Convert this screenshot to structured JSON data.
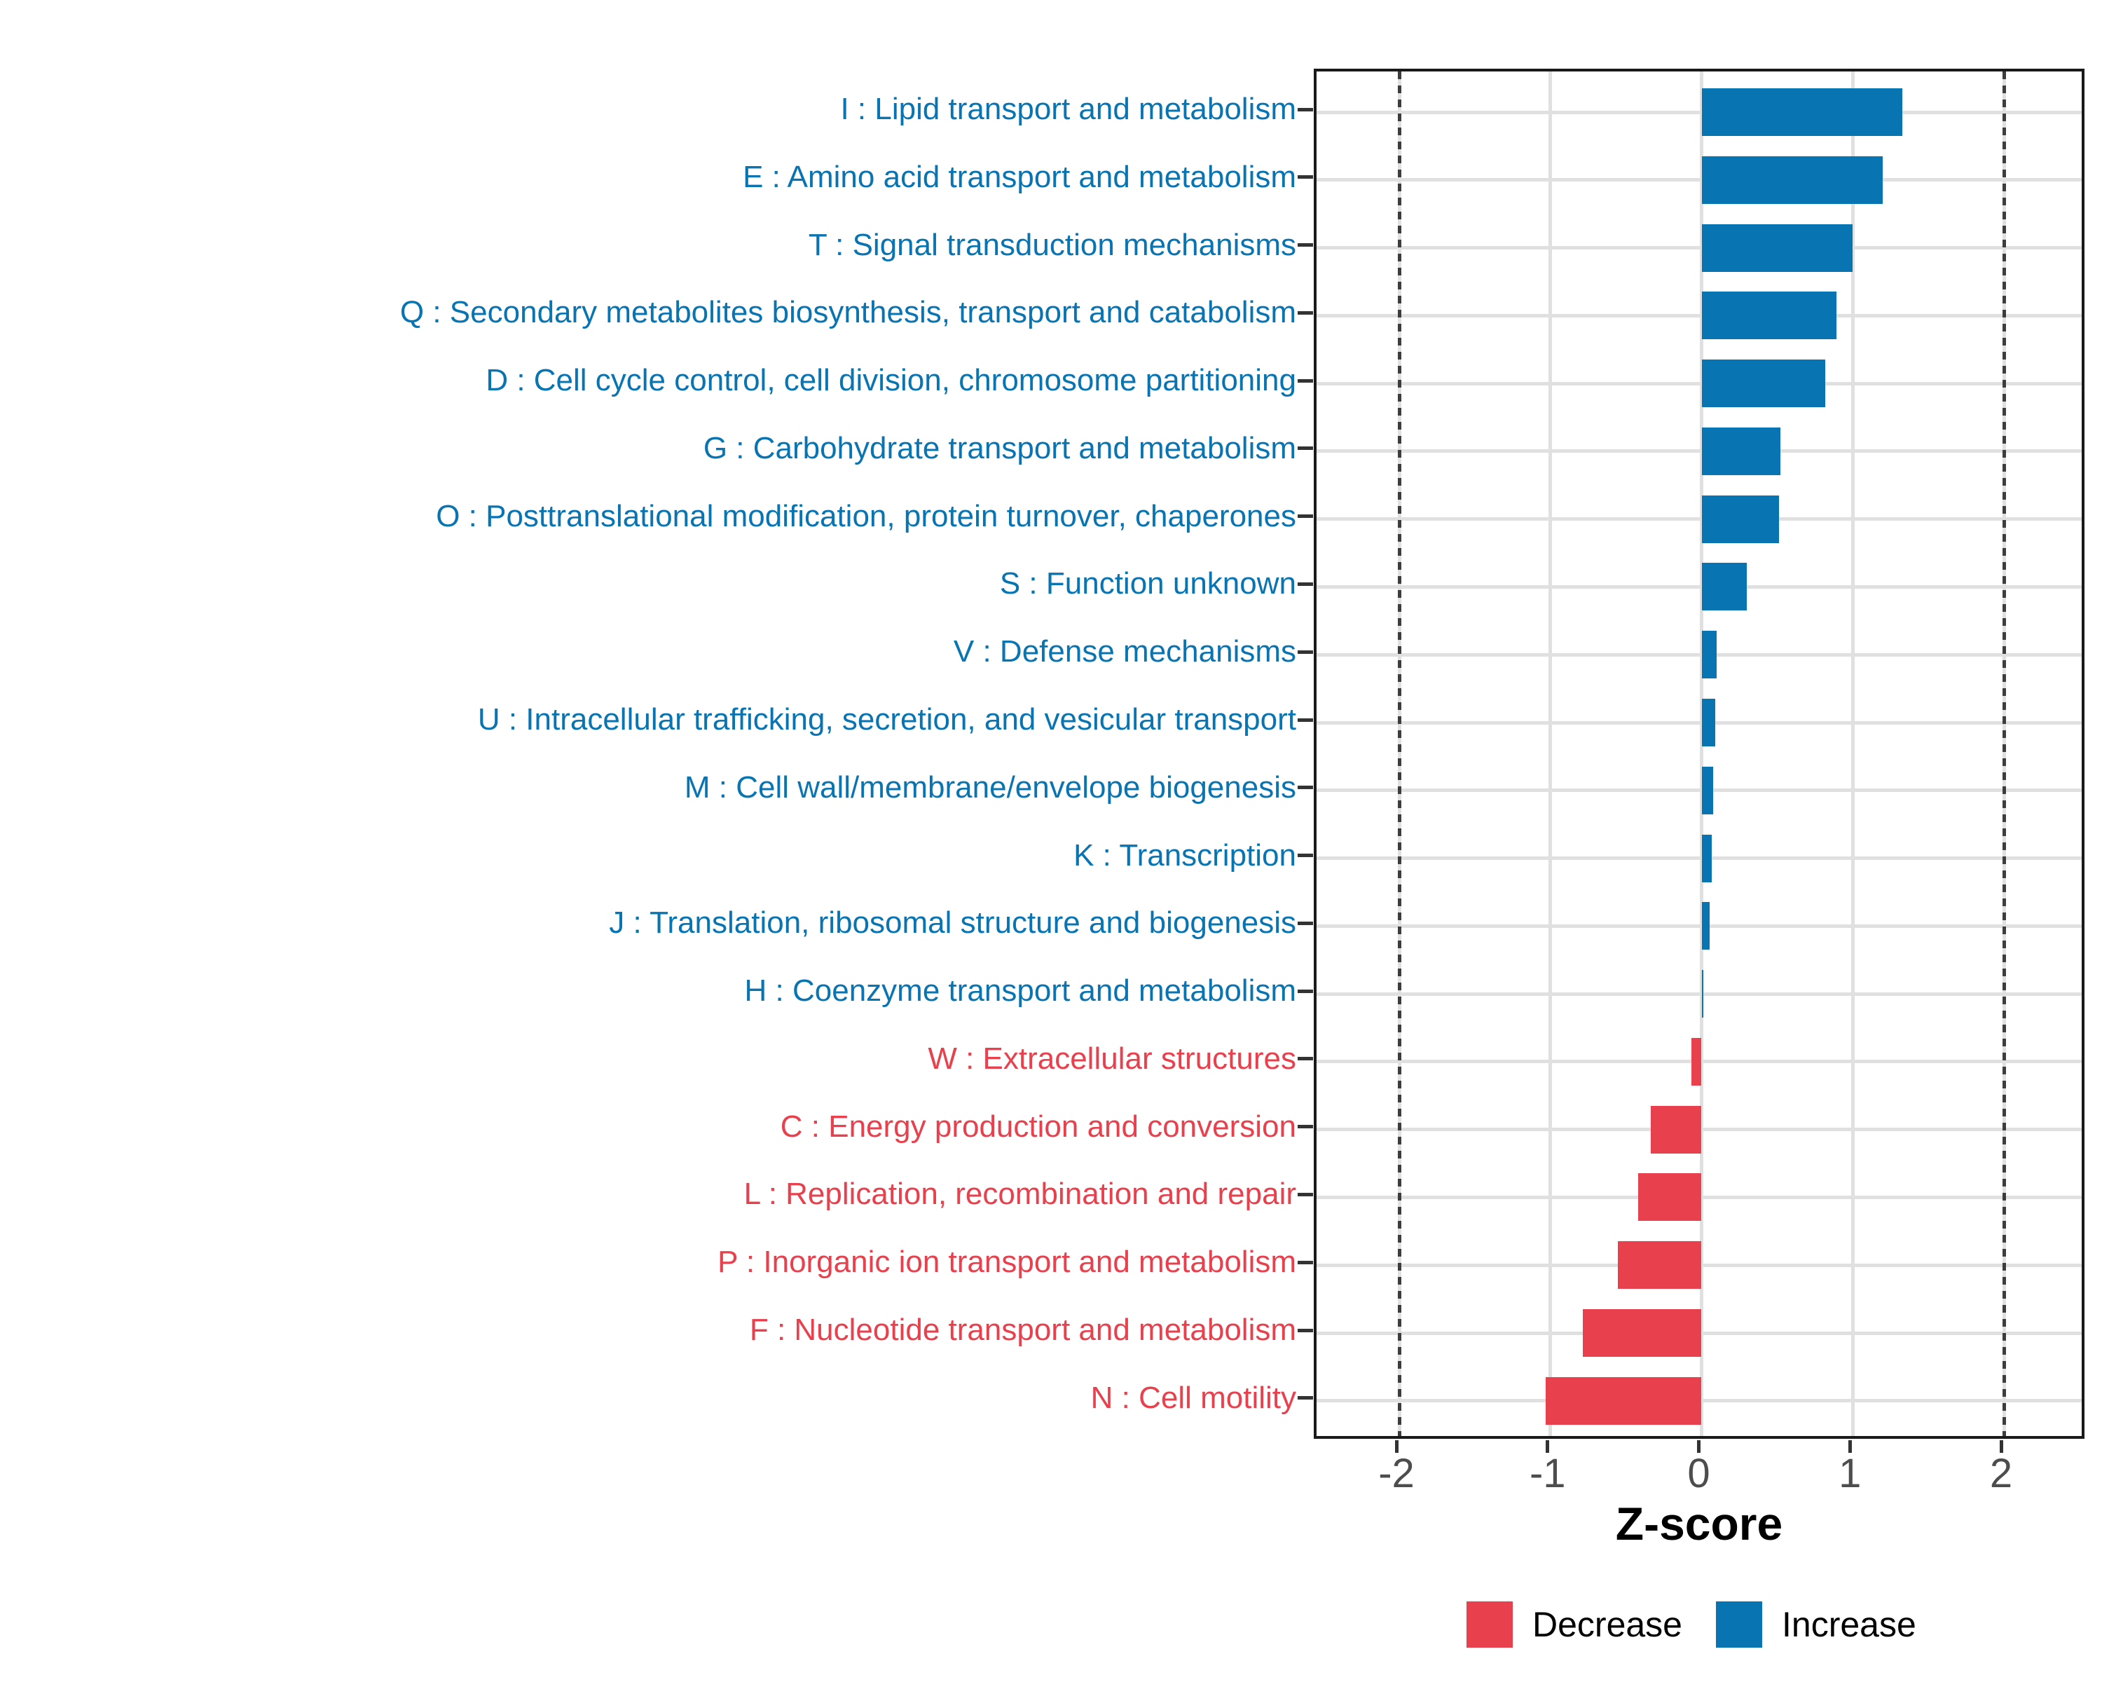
{
  "colors": {
    "increase": "#0874B2",
    "decrease": "#E8404C",
    "gridline": "#E0E0E0",
    "reference_line": "#3D3D3D",
    "axis_tick_text": "#4D4D4D",
    "panel_border": "#1A1A1A"
  },
  "chart_data": {
    "type": "bar",
    "orientation": "horizontal",
    "title": "",
    "xlabel": "Z-score",
    "ylabel": "",
    "xlim": [
      -2.55,
      2.55
    ],
    "x_ticks": [
      "-2",
      "-1",
      "0",
      "1",
      "2"
    ],
    "x_tick_values": [
      -2,
      -1,
      0,
      1,
      2
    ],
    "reference_lines": [
      -2,
      2
    ],
    "grid": "major-only",
    "legend_position": "bottom",
    "categories": [
      {
        "letter": "I",
        "label": "I : Lipid transport and metabolism",
        "value": 1.33,
        "direction": "increase"
      },
      {
        "letter": "E",
        "label": "E : Amino acid transport and metabolism",
        "value": 1.2,
        "direction": "increase"
      },
      {
        "letter": "T",
        "label": "T : Signal transduction mechanisms",
        "value": 1.0,
        "direction": "increase"
      },
      {
        "letter": "Q",
        "label": "Q : Secondary metabolites biosynthesis, transport and catabolism",
        "value": 0.89,
        "direction": "increase"
      },
      {
        "letter": "D",
        "label": "D : Cell cycle control, cell division, chromosome partitioning",
        "value": 0.82,
        "direction": "increase"
      },
      {
        "letter": "G",
        "label": "G : Carbohydrate transport and metabolism",
        "value": 0.52,
        "direction": "increase"
      },
      {
        "letter": "O",
        "label": "O : Posttranslational modification, protein turnover, chaperones",
        "value": 0.51,
        "direction": "increase"
      },
      {
        "letter": "S",
        "label": "S : Function unknown",
        "value": 0.3,
        "direction": "increase"
      },
      {
        "letter": "V",
        "label": "V : Defense mechanisms",
        "value": 0.1,
        "direction": "increase"
      },
      {
        "letter": "U",
        "label": "U : Intracellular trafficking, secretion, and vesicular transport",
        "value": 0.09,
        "direction": "increase"
      },
      {
        "letter": "M",
        "label": "M : Cell wall/membrane/envelope biogenesis",
        "value": 0.075,
        "direction": "increase"
      },
      {
        "letter": "K",
        "label": "K : Transcription",
        "value": 0.065,
        "direction": "increase"
      },
      {
        "letter": "J",
        "label": "J : Translation, ribosomal structure and biogenesis",
        "value": 0.055,
        "direction": "increase"
      },
      {
        "letter": "H",
        "label": "H : Coenzyme transport and metabolism",
        "value": 0.012,
        "direction": "increase"
      },
      {
        "letter": "W",
        "label": "W : Extracellular structures",
        "value": -0.065,
        "direction": "decrease"
      },
      {
        "letter": "C",
        "label": "C : Energy production and conversion",
        "value": -0.335,
        "direction": "decrease"
      },
      {
        "letter": "L",
        "label": "L : Replication, recombination and repair",
        "value": -0.42,
        "direction": "decrease"
      },
      {
        "letter": "P",
        "label": "P : Inorganic ion transport and metabolism",
        "value": -0.555,
        "direction": "decrease"
      },
      {
        "letter": "F",
        "label": "F : Nucleotide transport and metabolism",
        "value": -0.785,
        "direction": "decrease"
      },
      {
        "letter": "N",
        "label": "N : Cell motility",
        "value": -1.03,
        "direction": "decrease"
      }
    ]
  },
  "legend": {
    "items": [
      {
        "label": "Decrease",
        "color_key": "decrease"
      },
      {
        "label": "Increase",
        "color_key": "increase"
      }
    ]
  }
}
